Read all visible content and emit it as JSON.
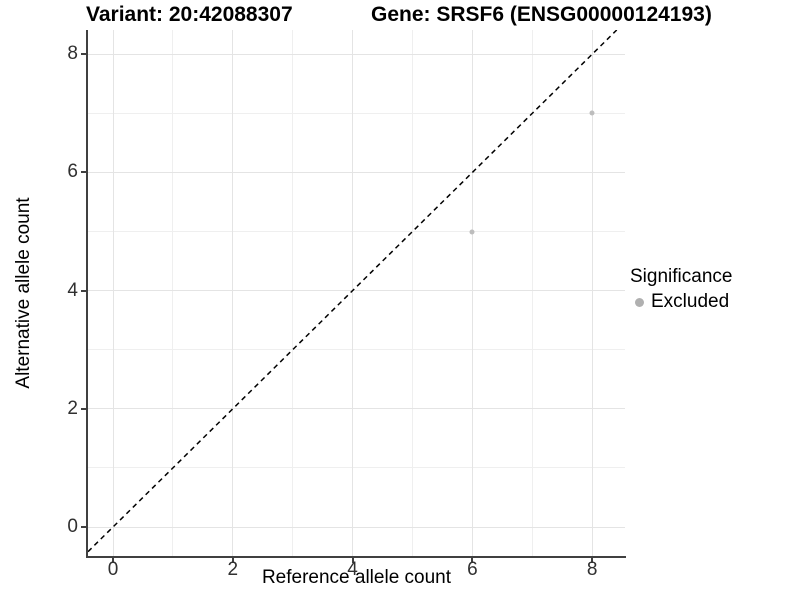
{
  "page": {
    "background": "#ffffff"
  },
  "chart_data": {
    "type": "scatter",
    "titles": {
      "left": "Variant: 20:42088307",
      "right": "Gene: SRSF6 (ENSG00000124193)"
    },
    "xlabel": "Reference allele count",
    "ylabel": "Alternative allele count",
    "xticks": [
      0,
      2,
      4,
      6,
      8
    ],
    "yticks": [
      0,
      2,
      4,
      6,
      8
    ],
    "xminor": [
      1,
      3,
      5,
      7
    ],
    "yminor": [
      1,
      3,
      5,
      7
    ],
    "xlim": [
      -0.42,
      8.55
    ],
    "ylim": [
      -0.5,
      8.41
    ],
    "grid": "on",
    "diagonal_reference_line": {
      "slope": 1,
      "intercept": 0,
      "style": "dashed",
      "color": "#000000"
    },
    "series": [
      {
        "name": "Excluded",
        "color": "#bdbdbd",
        "points": [
          {
            "x": 6,
            "y": 5
          },
          {
            "x": 8,
            "y": 7
          }
        ]
      }
    ],
    "legend": {
      "position": "right",
      "title": "Significance",
      "entries": [
        {
          "label": "Excluded",
          "color": "#b0b0b0"
        }
      ]
    },
    "colors": {
      "grid_major": "#e4e4e4",
      "grid_minor": "#efefef",
      "axis": "#404040",
      "tick_text": "#303030"
    }
  }
}
